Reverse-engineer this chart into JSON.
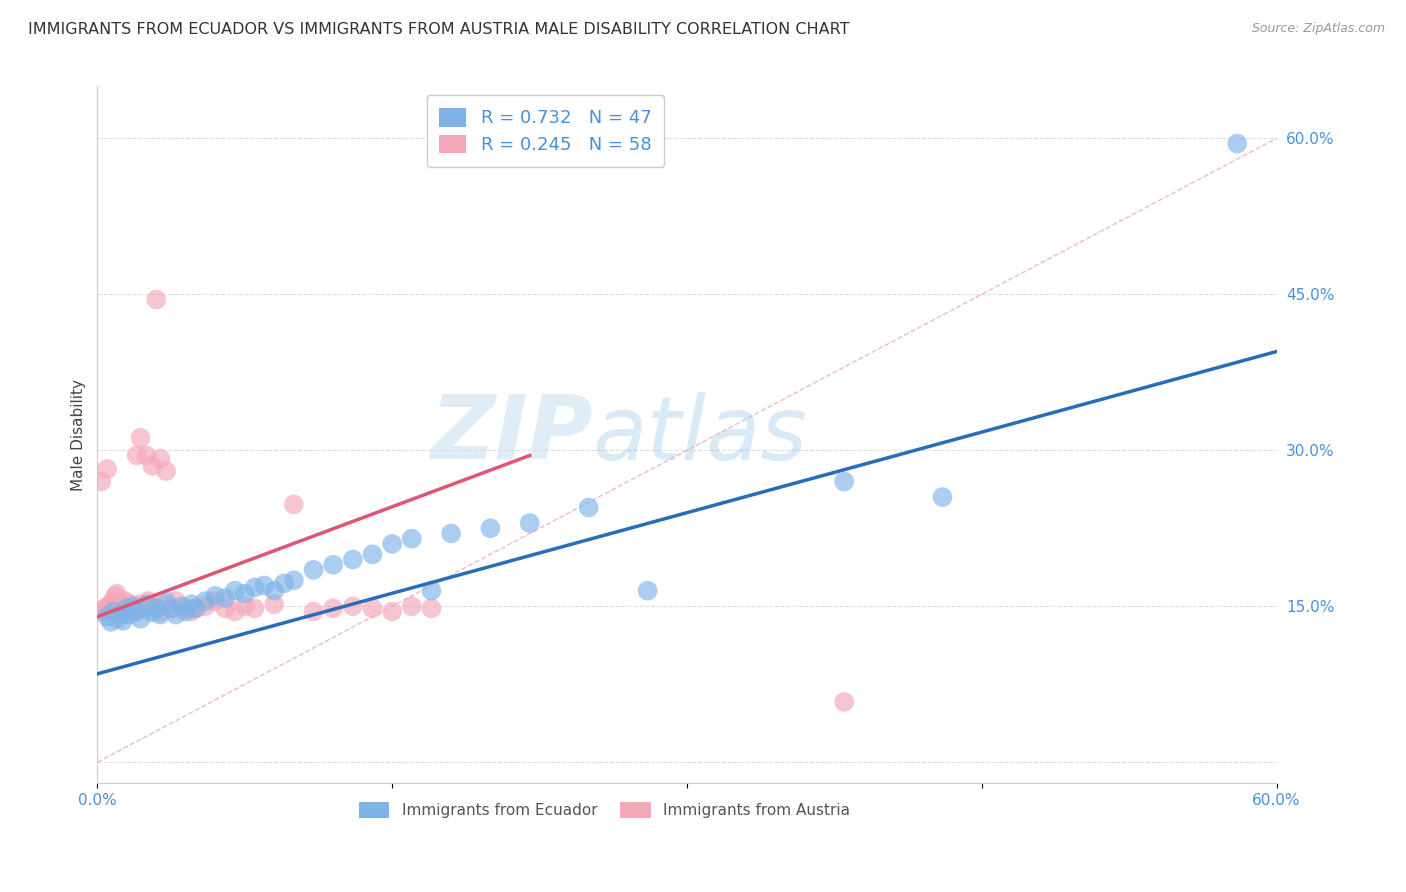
{
  "title": "IMMIGRANTS FROM ECUADOR VS IMMIGRANTS FROM AUSTRIA MALE DISABILITY CORRELATION CHART",
  "source_text": "Source: ZipAtlas.com",
  "ylabel": "Male Disability",
  "watermark": "ZIPatlas",
  "xmin": 0.0,
  "xmax": 0.6,
  "ymin": -0.02,
  "ymax": 0.65,
  "yticks": [
    0.0,
    0.15,
    0.3,
    0.45,
    0.6
  ],
  "ytick_labels": [
    "",
    "15.0%",
    "30.0%",
    "45.0%",
    "60.0%"
  ],
  "xticks": [
    0.0,
    0.15,
    0.3,
    0.45,
    0.6
  ],
  "xtick_labels": [
    "0.0%",
    "",
    "",
    "",
    "60.0%"
  ],
  "ecuador_color": "#7fb3e8",
  "austria_color": "#f4a7b9",
  "ecuador_line_color": "#2b6cb8",
  "austria_line_color": "#e05575",
  "tick_color": "#4a90d9",
  "R_ecuador": 0.732,
  "N_ecuador": 47,
  "R_austria": 0.245,
  "N_austria": 58,
  "ecuador_scatter_x": [
    0.005,
    0.007,
    0.008,
    0.01,
    0.012,
    0.013,
    0.015,
    0.016,
    0.018,
    0.02,
    0.022,
    0.025,
    0.028,
    0.03,
    0.032,
    0.035,
    0.038,
    0.04,
    0.043,
    0.045,
    0.048,
    0.05,
    0.055,
    0.06,
    0.065,
    0.07,
    0.075,
    0.08,
    0.085,
    0.09,
    0.095,
    0.1,
    0.11,
    0.12,
    0.13,
    0.14,
    0.15,
    0.16,
    0.17,
    0.18,
    0.2,
    0.22,
    0.25,
    0.28,
    0.38,
    0.43,
    0.58
  ],
  "ecuador_scatter_y": [
    0.14,
    0.135,
    0.145,
    0.138,
    0.142,
    0.136,
    0.148,
    0.142,
    0.15,
    0.145,
    0.138,
    0.152,
    0.144,
    0.148,
    0.142,
    0.155,
    0.148,
    0.142,
    0.15,
    0.145,
    0.152,
    0.148,
    0.155,
    0.16,
    0.158,
    0.165,
    0.162,
    0.168,
    0.17,
    0.165,
    0.172,
    0.175,
    0.185,
    0.19,
    0.195,
    0.2,
    0.21,
    0.215,
    0.165,
    0.22,
    0.225,
    0.23,
    0.245,
    0.165,
    0.27,
    0.255,
    0.595
  ],
  "austria_scatter_x": [
    0.002,
    0.003,
    0.004,
    0.005,
    0.005,
    0.006,
    0.007,
    0.007,
    0.008,
    0.008,
    0.009,
    0.01,
    0.01,
    0.011,
    0.012,
    0.013,
    0.014,
    0.015,
    0.016,
    0.017,
    0.018,
    0.019,
    0.02,
    0.022,
    0.024,
    0.026,
    0.028,
    0.03,
    0.032,
    0.035,
    0.038,
    0.04,
    0.045,
    0.048,
    0.05,
    0.055,
    0.06,
    0.065,
    0.07,
    0.075,
    0.08,
    0.09,
    0.1,
    0.11,
    0.12,
    0.13,
    0.14,
    0.15,
    0.16,
    0.17,
    0.02,
    0.022,
    0.025,
    0.028,
    0.03,
    0.032,
    0.035,
    0.38
  ],
  "austria_scatter_y": [
    0.27,
    0.145,
    0.148,
    0.282,
    0.15,
    0.148,
    0.145,
    0.152,
    0.148,
    0.155,
    0.16,
    0.162,
    0.148,
    0.145,
    0.15,
    0.148,
    0.155,
    0.145,
    0.148,
    0.152,
    0.15,
    0.148,
    0.145,
    0.152,
    0.148,
    0.155,
    0.15,
    0.148,
    0.145,
    0.152,
    0.148,
    0.155,
    0.148,
    0.145,
    0.148,
    0.15,
    0.155,
    0.148,
    0.145,
    0.15,
    0.148,
    0.152,
    0.248,
    0.145,
    0.148,
    0.15,
    0.148,
    0.145,
    0.15,
    0.148,
    0.295,
    0.312,
    0.295,
    0.285,
    0.445,
    0.292,
    0.28,
    0.058
  ],
  "ecuador_line_x": [
    0.0,
    0.6
  ],
  "ecuador_line_y": [
    0.085,
    0.395
  ],
  "austria_line_x": [
    0.0,
    0.22
  ],
  "austria_line_y": [
    0.14,
    0.295
  ],
  "diag_line_x": [
    0.0,
    0.6
  ],
  "diag_line_y": [
    0.0,
    0.6
  ],
  "background_color": "#ffffff",
  "grid_color": "#dddddd",
  "title_fontsize": 11.5,
  "axis_label_fontsize": 11,
  "tick_fontsize": 11,
  "legend_fontsize": 13
}
